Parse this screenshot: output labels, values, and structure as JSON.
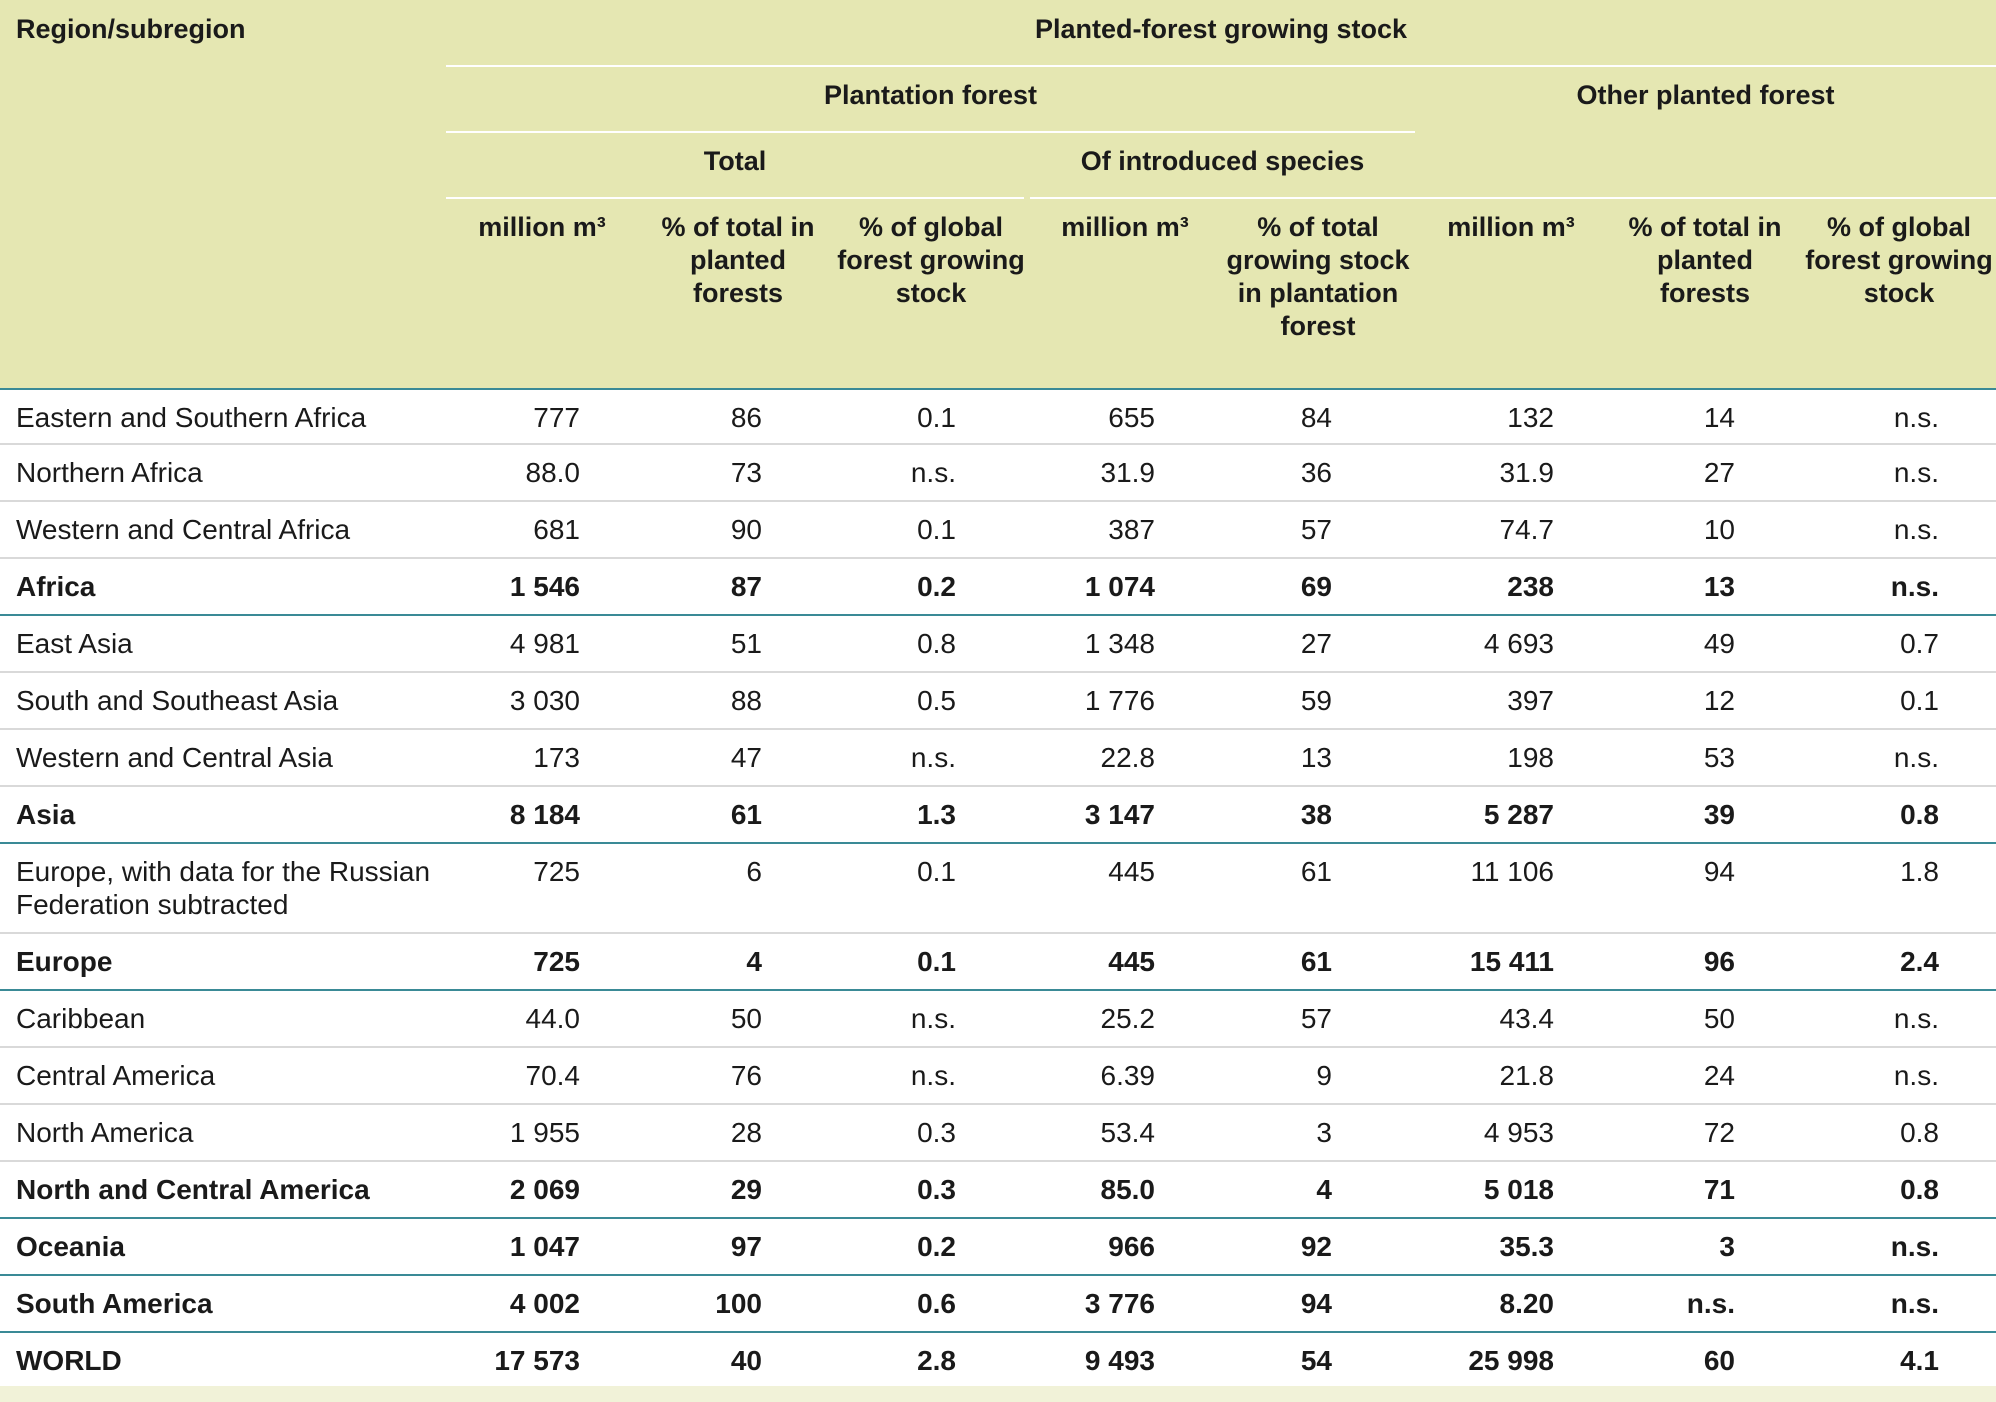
{
  "header": {
    "region_label": "Region/subregion",
    "main_title": "Planted-forest growing stock",
    "plantation_label": "Plantation forest",
    "other_label": "Other planted forest",
    "total_label": "Total",
    "introduced_label": "Of introduced species",
    "col_units": [
      "million m³",
      "% of total in planted forests",
      "% of global forest growing stock",
      "million m³",
      "% of total growing stock in plantation forest",
      "million m³",
      "% of total in planted forests",
      "% of global forest growing stock"
    ]
  },
  "rows": [
    {
      "region": "Eastern and Southern Africa",
      "vals": [
        "777",
        "86",
        "0.1",
        "655",
        "84",
        "132",
        "14",
        "n.s."
      ],
      "total": false
    },
    {
      "region": "Northern Africa",
      "vals": [
        "88.0",
        "73",
        "n.s.",
        "31.9",
        "36",
        "31.9",
        "27",
        "n.s."
      ],
      "total": false
    },
    {
      "region": "Western and Central Africa",
      "vals": [
        "681",
        "90",
        "0.1",
        "387",
        "57",
        "74.7",
        "10",
        "n.s."
      ],
      "total": false
    },
    {
      "region": "Africa",
      "vals": [
        "1 546",
        "87",
        "0.2",
        "1 074",
        "69",
        "238",
        "13",
        "n.s."
      ],
      "total": true
    },
    {
      "region": "East Asia",
      "vals": [
        "4 981",
        "51",
        "0.8",
        "1 348",
        "27",
        "4 693",
        "49",
        "0.7"
      ],
      "total": false
    },
    {
      "region": "South and Southeast Asia",
      "vals": [
        "3 030",
        "88",
        "0.5",
        "1 776",
        "59",
        "397",
        "12",
        "0.1"
      ],
      "total": false
    },
    {
      "region": "Western and Central Asia",
      "vals": [
        "173",
        "47",
        "n.s.",
        "22.8",
        "13",
        "198",
        "53",
        "n.s."
      ],
      "total": false
    },
    {
      "region": "Asia",
      "vals": [
        "8 184",
        "61",
        "1.3",
        "3 147",
        "38",
        "5 287",
        "39",
        "0.8"
      ],
      "total": true
    },
    {
      "region": "Europe, with data for the Russian Federation subtracted",
      "vals": [
        "725",
        "6",
        "0.1",
        "445",
        "61",
        "11 106",
        "94",
        "1.8"
      ],
      "total": false
    },
    {
      "region": "Europe",
      "vals": [
        "725",
        "4",
        "0.1",
        "445",
        "61",
        "15 411",
        "96",
        "2.4"
      ],
      "total": true
    },
    {
      "region": "Caribbean",
      "vals": [
        "44.0",
        "50",
        "n.s.",
        "25.2",
        "57",
        "43.4",
        "50",
        "n.s."
      ],
      "total": false
    },
    {
      "region": "Central America",
      "vals": [
        "70.4",
        "76",
        "n.s.",
        "6.39",
        "9",
        "21.8",
        "24",
        "n.s."
      ],
      "total": false
    },
    {
      "region": "North America",
      "vals": [
        "1 955",
        "28",
        "0.3",
        "53.4",
        "3",
        "4 953",
        "72",
        "0.8"
      ],
      "total": false
    },
    {
      "region": "North and Central America",
      "vals": [
        "2 069",
        "29",
        "0.3",
        "85.0",
        "4",
        "5 018",
        "71",
        "0.8"
      ],
      "total": true
    },
    {
      "region": "Oceania",
      "vals": [
        "1 047",
        "97",
        "0.2",
        "966",
        "92",
        "35.3",
        "3",
        "n.s."
      ],
      "total": true
    },
    {
      "region": "South America",
      "vals": [
        "4 002",
        "100",
        "0.6",
        "3 776",
        "94",
        "8.20",
        "n.s.",
        "n.s."
      ],
      "total": true
    },
    {
      "region": "WORLD",
      "vals": [
        "17 573",
        "40",
        "2.8",
        "9 493",
        "54",
        "25 998",
        "60",
        "4.1"
      ],
      "total": true
    }
  ]
}
